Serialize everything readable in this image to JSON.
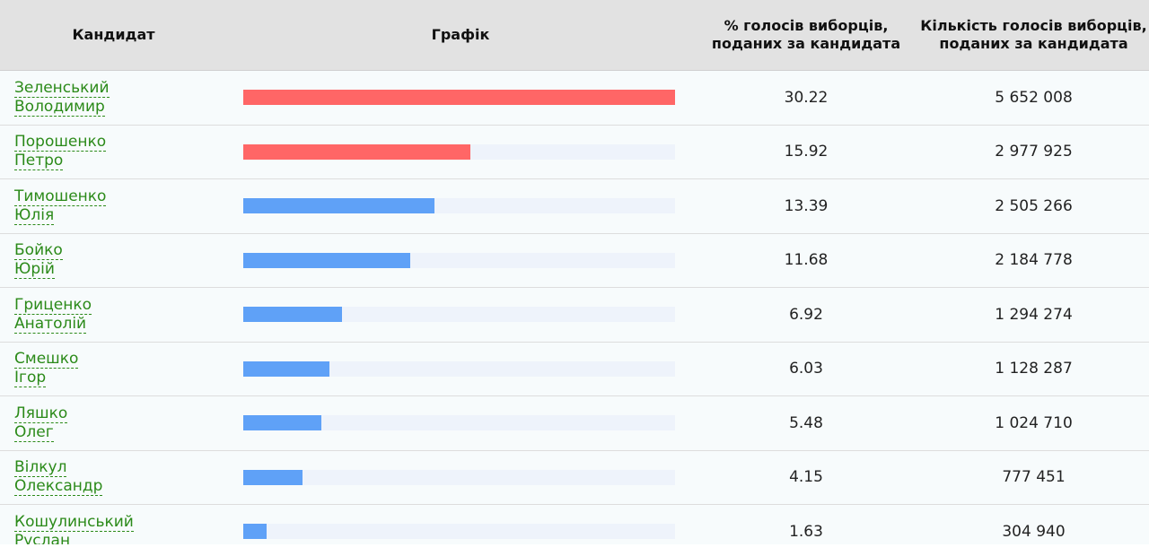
{
  "table": {
    "headers": {
      "candidate": "Кандидат",
      "chart": "Графік",
      "percent": "% голосів виборців, поданих за кандидата",
      "votes": "Кількість голосів виборців, поданих за кандидата"
    },
    "colors": {
      "leader": "#ff6666",
      "other": "#5fa1f7",
      "track": "#eef3fb",
      "link": "#2b8a19"
    },
    "rows": [
      {
        "surname": "Зеленський",
        "given": "Володимир",
        "percent": "30.22",
        "votes": "5 652 008",
        "share": 30.22,
        "color": "#ff6666"
      },
      {
        "surname": "Порошенко",
        "given": "Петро",
        "percent": "15.92",
        "votes": "2 977 925",
        "share": 15.92,
        "color": "#ff6666"
      },
      {
        "surname": "Тимошенко",
        "given": "Юлія",
        "percent": "13.39",
        "votes": "2 505 266",
        "share": 13.39,
        "color": "#5fa1f7"
      },
      {
        "surname": "Бойко",
        "given": "Юрій",
        "percent": "11.68",
        "votes": "2 184 778",
        "share": 11.68,
        "color": "#5fa1f7"
      },
      {
        "surname": "Гриценко",
        "given": "Анатолій",
        "percent": "6.92",
        "votes": "1 294 274",
        "share": 6.92,
        "color": "#5fa1f7"
      },
      {
        "surname": "Смешко",
        "given": "Ігор",
        "percent": "6.03",
        "votes": "1 128 287",
        "share": 6.03,
        "color": "#5fa1f7"
      },
      {
        "surname": "Ляшко",
        "given": "Олег",
        "percent": "5.48",
        "votes": "1 024 710",
        "share": 5.48,
        "color": "#5fa1f7"
      },
      {
        "surname": "Вілкул",
        "given": "Олександр",
        "percent": "4.15",
        "votes": "777 451",
        "share": 4.15,
        "color": "#5fa1f7"
      },
      {
        "surname": "Кошулинський",
        "given": "Руслан",
        "percent": "1.63",
        "votes": "304 940",
        "share": 1.63,
        "color": "#5fa1f7"
      }
    ]
  }
}
